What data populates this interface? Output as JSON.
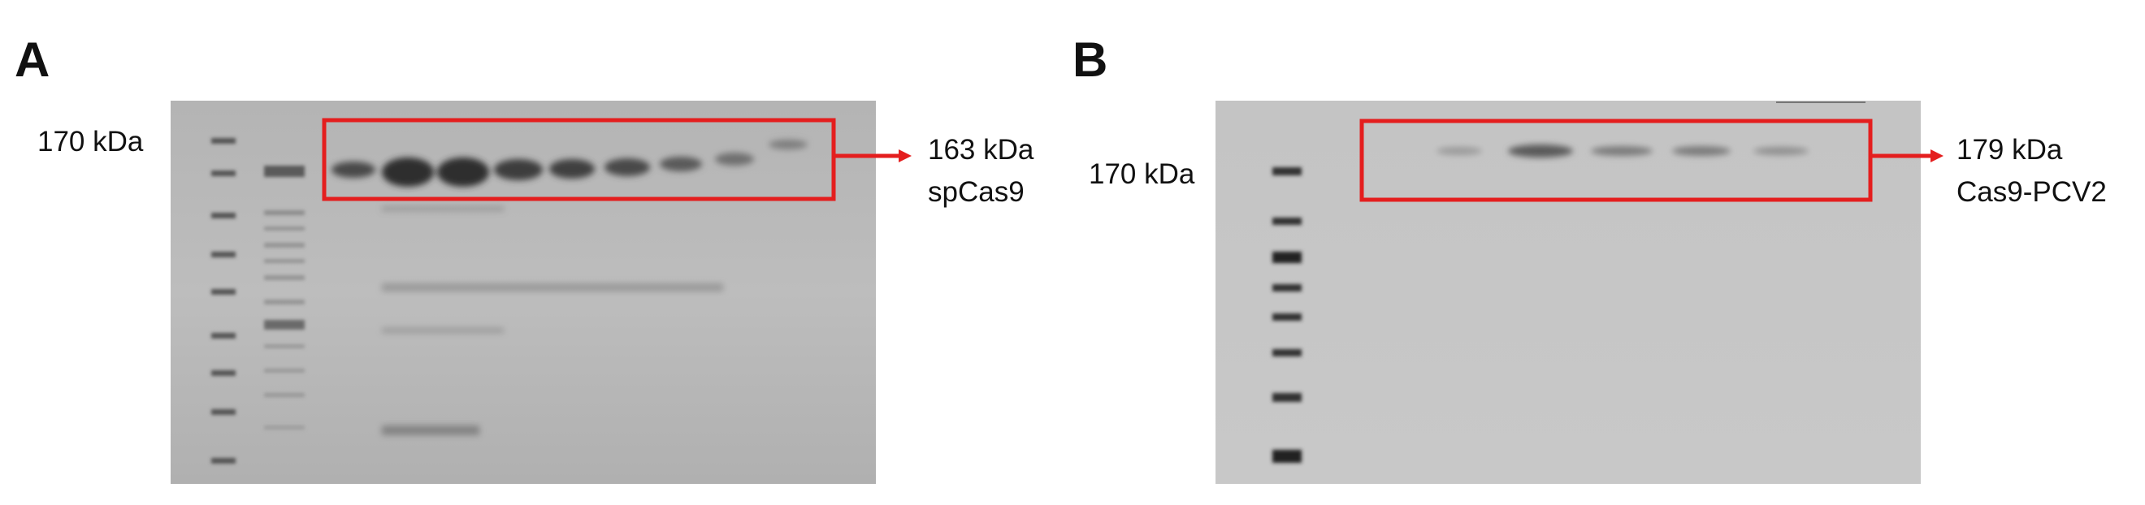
{
  "figure": {
    "panel_a": {
      "letter": "A",
      "marker_label": "170 kDa",
      "band_size": "163 kDa",
      "protein_name": "spCas9",
      "colors": {
        "highlight": "#e41e1e"
      }
    },
    "panel_b": {
      "letter": "B",
      "marker_label": "170 kDa",
      "band_size": "179 kDa",
      "protein_name": "Cas9-PCV2",
      "colors": {
        "highlight": "#e41e1e"
      }
    }
  }
}
